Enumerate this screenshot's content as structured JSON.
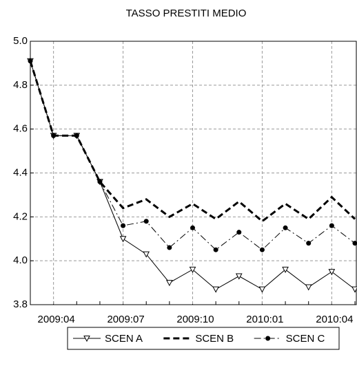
{
  "chart_data": {
    "type": "line",
    "title": "TASSO PRESTITI MEDIO",
    "categories": [
      null,
      "2009:04",
      null,
      null,
      "2009:07",
      null,
      null,
      "2009:10",
      null,
      null,
      "2010:01",
      null,
      null,
      "2010:04",
      null
    ],
    "series": [
      {
        "name": "SCEN A",
        "color": "#000000",
        "line_style": "solid",
        "line_width": 1,
        "marker": "triangle",
        "values": [
          4.91,
          4.57,
          4.57,
          4.36,
          4.1,
          4.03,
          3.9,
          3.96,
          3.87,
          3.93,
          3.87,
          3.96,
          3.88,
          3.95,
          3.87
        ]
      },
      {
        "name": "SCEN B",
        "color": "#000000",
        "line_style": "dashed",
        "line_width": 3,
        "marker": "none",
        "values": [
          4.91,
          4.57,
          4.57,
          4.36,
          4.24,
          4.28,
          4.2,
          4.26,
          4.19,
          4.27,
          4.18,
          4.26,
          4.19,
          4.29,
          4.19
        ]
      },
      {
        "name": "SCEN C",
        "color": "#000000",
        "line_style": "dashdot",
        "line_width": 1,
        "marker": "circle",
        "values": [
          4.91,
          4.57,
          4.57,
          4.36,
          4.16,
          4.18,
          4.06,
          4.15,
          4.05,
          4.13,
          4.05,
          4.15,
          4.08,
          4.16,
          4.08
        ]
      }
    ],
    "ylim": [
      3.8,
      5.0
    ],
    "yticks": [
      3.8,
      {
        "value": 4.0,
        "label": "4.0"
      },
      4.2,
      4.4,
      4.6,
      4.8,
      {
        "value": 5.0,
        "label": "5.0"
      }
    ],
    "grid": true,
    "legend": "bottom"
  }
}
